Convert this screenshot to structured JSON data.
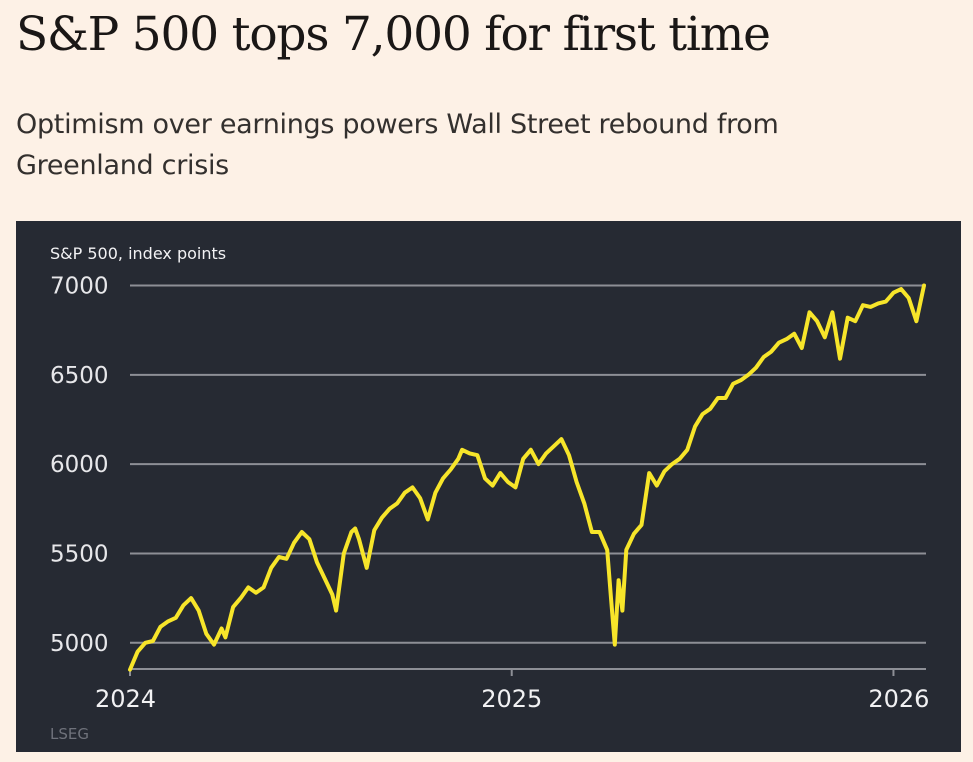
{
  "article": {
    "headline": "S&P 500 tops 7,000 for first time",
    "standfirst": "Optimism over earnings powers Wall Street rebound from Greenland crisis"
  },
  "colors": {
    "page_background": "#fdf1e6",
    "chart_background": "#262a33",
    "series_line": "#f7e52a",
    "gridline": "#8d8f96"
  },
  "chart_data": {
    "type": "line",
    "title": "",
    "ylabel": "S&P 500, index points",
    "xlabel": "",
    "source": "LSEG",
    "ylim": [
      4870,
      7070
    ],
    "xlim": [
      2024.0,
      2026.08
    ],
    "yticks": [
      5000,
      5500,
      6000,
      6500,
      7000
    ],
    "ytick_labels": [
      "5000",
      "5500",
      "6000",
      "6500",
      "7000"
    ],
    "xticks": [
      2024,
      2025,
      2026
    ],
    "xtick_labels": [
      "2024",
      "2025",
      "2026"
    ],
    "grid": true,
    "legend": "none",
    "series": [
      {
        "name": "S&P 500",
        "x": [
          2024.0,
          2024.02,
          2024.04,
          2024.06,
          2024.08,
          2024.1,
          2024.12,
          2024.14,
          2024.16,
          2024.18,
          2024.2,
          2024.22,
          2024.24,
          2024.25,
          2024.27,
          2024.29,
          2024.31,
          2024.33,
          2024.35,
          2024.37,
          2024.39,
          2024.41,
          2024.43,
          2024.45,
          2024.47,
          2024.49,
          2024.51,
          2024.53,
          2024.54,
          2024.56,
          2024.58,
          2024.59,
          2024.6,
          2024.62,
          2024.64,
          2024.66,
          2024.68,
          2024.7,
          2024.72,
          2024.74,
          2024.76,
          2024.78,
          2024.8,
          2024.82,
          2024.84,
          2024.86,
          2024.87,
          2024.89,
          2024.91,
          2024.93,
          2024.95,
          2024.97,
          2024.99,
          2025.01,
          2025.03,
          2025.05,
          2025.07,
          2025.09,
          2025.11,
          2025.13,
          2025.15,
          2025.17,
          2025.19,
          2025.21,
          2025.23,
          2025.25,
          2025.26,
          2025.27,
          2025.28,
          2025.29,
          2025.3,
          2025.32,
          2025.34,
          2025.36,
          2025.38,
          2025.4,
          2025.42,
          2025.44,
          2025.46,
          2025.48,
          2025.5,
          2025.52,
          2025.54,
          2025.56,
          2025.58,
          2025.6,
          2025.62,
          2025.64,
          2025.66,
          2025.68,
          2025.7,
          2025.72,
          2025.74,
          2025.76,
          2025.78,
          2025.8,
          2025.82,
          2025.84,
          2025.86,
          2025.88,
          2025.9,
          2025.92,
          2025.94,
          2025.96,
          2025.98,
          2026.0,
          2026.02,
          2026.04,
          2026.06,
          2026.08
        ],
        "values": [
          4850,
          4950,
          5000,
          5010,
          5090,
          5120,
          5140,
          5210,
          5250,
          5180,
          5050,
          4990,
          5080,
          5030,
          5200,
          5250,
          5310,
          5280,
          5310,
          5420,
          5480,
          5470,
          5560,
          5620,
          5580,
          5450,
          5360,
          5270,
          5180,
          5500,
          5620,
          5640,
          5580,
          5420,
          5630,
          5700,
          5750,
          5780,
          5840,
          5870,
          5810,
          5690,
          5840,
          5920,
          5970,
          6030,
          6080,
          6060,
          6050,
          5920,
          5880,
          5950,
          5900,
          5870,
          6030,
          6080,
          6000,
          6060,
          6100,
          6140,
          6050,
          5900,
          5780,
          5620,
          5620,
          5520,
          5250,
          4990,
          5350,
          5180,
          5520,
          5610,
          5660,
          5950,
          5880,
          5960,
          6000,
          6030,
          6080,
          6210,
          6280,
          6310,
          6370,
          6370,
          6450,
          6470,
          6500,
          6540,
          6600,
          6630,
          6680,
          6700,
          6730,
          6650,
          6850,
          6800,
          6710,
          6850,
          6590,
          6820,
          6800,
          6890,
          6880,
          6900,
          6910,
          6960,
          6980,
          6930,
          6800,
          7000
        ]
      }
    ]
  }
}
